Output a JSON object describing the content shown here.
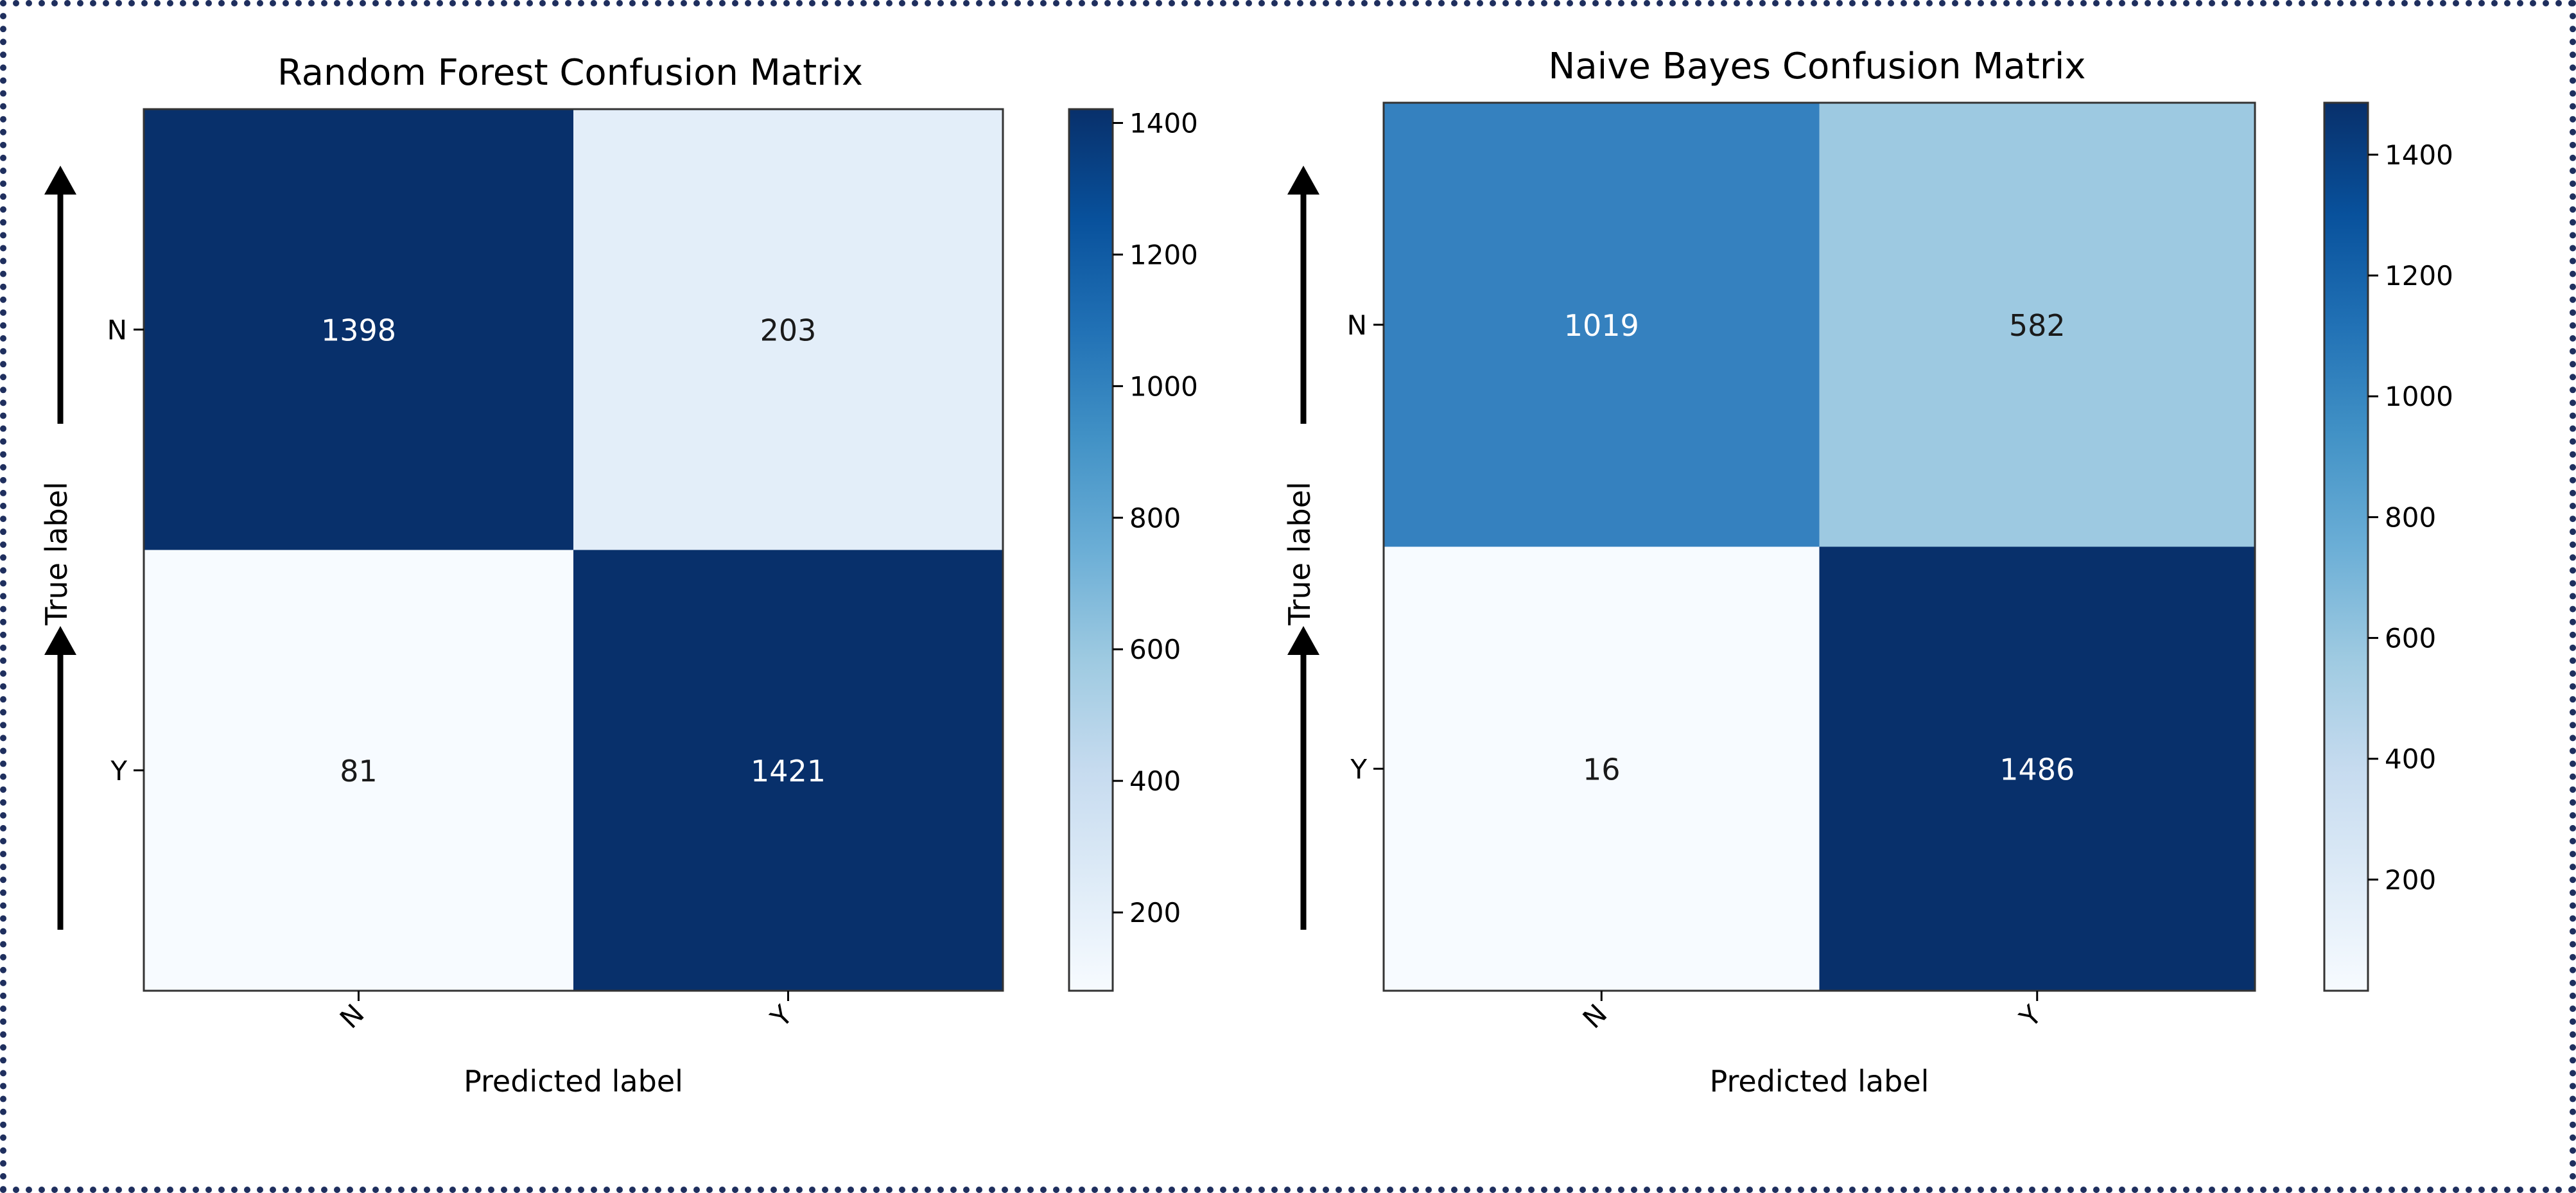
{
  "figure": {
    "frame_color": "#1f2f5e",
    "arrow_color": "#000000"
  },
  "chart_data": [
    {
      "type": "heatmap",
      "title": "Random Forest Confusion Matrix",
      "xlabel": "Predicted label",
      "ylabel": "True label",
      "x_categories": [
        "N",
        "Y"
      ],
      "y_categories": [
        "N",
        "Y"
      ],
      "values": [
        [
          1398,
          203
        ],
        [
          81,
          1421
        ]
      ],
      "colormap": "Blues",
      "color_range": [
        81,
        1421
      ],
      "colorbar_ticks": [
        200,
        400,
        600,
        800,
        1000,
        1200,
        1400
      ],
      "cell_colors": [
        [
          "#08306b",
          "#e3eef9"
        ],
        [
          "#f7fbff",
          "#08306b"
        ]
      ],
      "text_colors": [
        [
          "#ffffff",
          "#1a1a1a"
        ],
        [
          "#1a1a1a",
          "#ffffff"
        ]
      ]
    },
    {
      "type": "heatmap",
      "title": "Naive Bayes Confusion Matrix",
      "xlabel": "Predicted label",
      "ylabel": "True label",
      "x_categories": [
        "N",
        "Y"
      ],
      "y_categories": [
        "N",
        "Y"
      ],
      "values": [
        [
          1019,
          582
        ],
        [
          16,
          1486
        ]
      ],
      "colormap": "Blues",
      "color_range": [
        16,
        1486
      ],
      "colorbar_ticks": [
        200,
        400,
        600,
        800,
        1000,
        1200,
        1400
      ],
      "cell_colors": [
        [
          "#3581bf",
          "#9dc9e1"
        ],
        [
          "#f7fbff",
          "#08306b"
        ]
      ],
      "text_colors": [
        [
          "#ffffff",
          "#1a1a1a"
        ],
        [
          "#1a1a1a",
          "#ffffff"
        ]
      ]
    }
  ]
}
